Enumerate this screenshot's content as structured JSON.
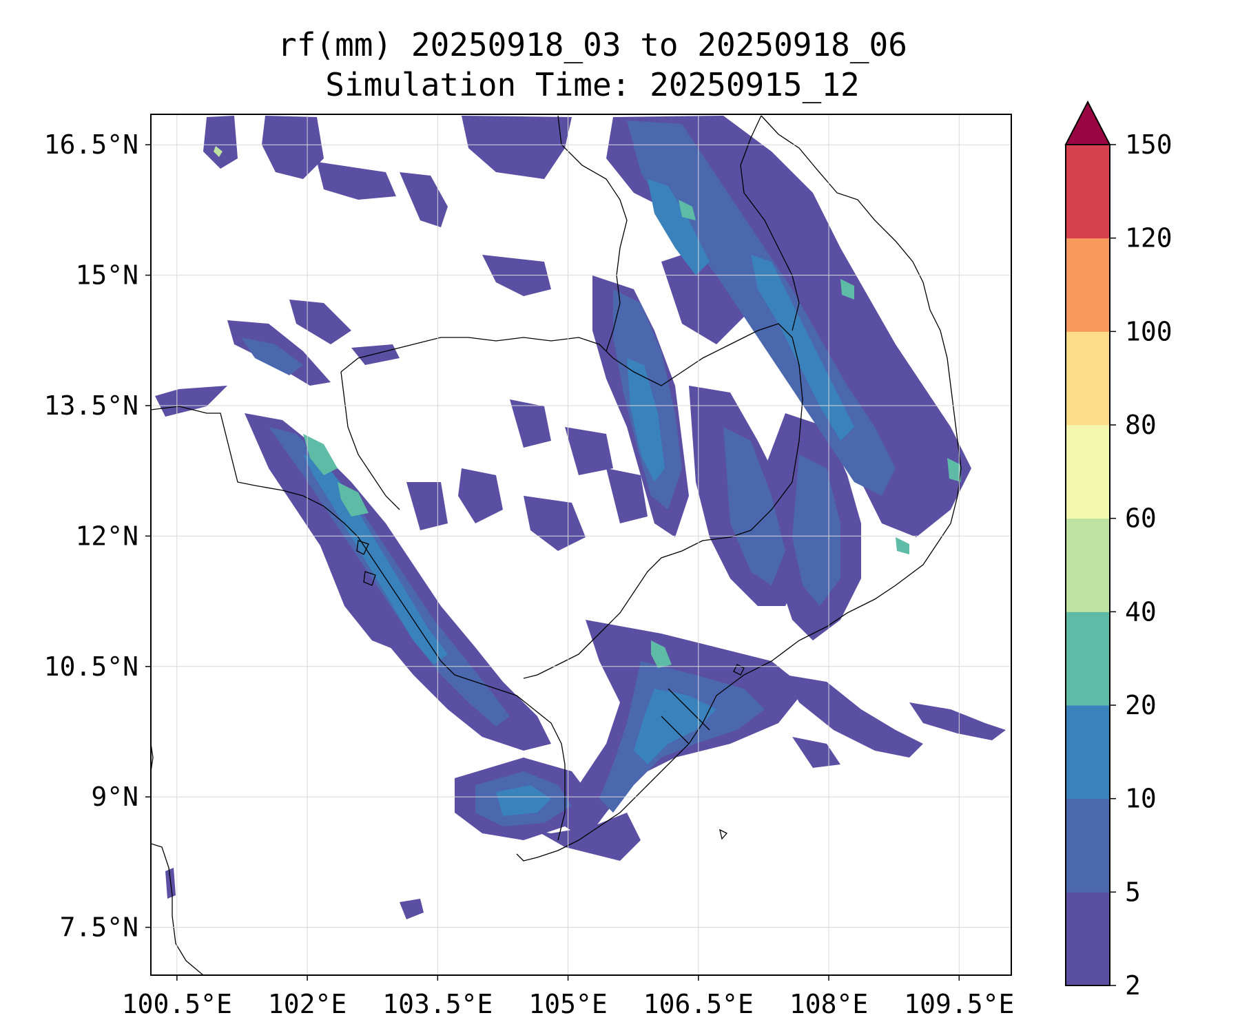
{
  "title": {
    "line1": "rf(mm) 20250918_03 to 20250918_06",
    "line2": "Simulation Time: 20250915_12"
  },
  "map": {
    "lon_range": [
      100.2,
      110.1
    ],
    "lat_range": [
      6.95,
      16.85
    ],
    "x_ticks": [
      {
        "value": 100.5,
        "label": "100.5°E"
      },
      {
        "value": 102.0,
        "label": "102°E"
      },
      {
        "value": 103.5,
        "label": "103.5°E"
      },
      {
        "value": 105.0,
        "label": "105°E"
      },
      {
        "value": 106.5,
        "label": "106.5°E"
      },
      {
        "value": 108.0,
        "label": "108°E"
      },
      {
        "value": 109.5,
        "label": "109.5°E"
      }
    ],
    "y_ticks": [
      {
        "value": 16.5,
        "label": "16.5°N"
      },
      {
        "value": 15.0,
        "label": "15°N"
      },
      {
        "value": 13.5,
        "label": "13.5°N"
      },
      {
        "value": 12.0,
        "label": "12°N"
      },
      {
        "value": 10.5,
        "label": "10.5°N"
      },
      {
        "value": 9.0,
        "label": "9°N"
      },
      {
        "value": 7.5,
        "label": "7.5°N"
      }
    ],
    "gridlines": true
  },
  "colorbar": {
    "levels": [
      2,
      5,
      10,
      20,
      40,
      60,
      80,
      100,
      120,
      150
    ],
    "labels": [
      "2",
      "5",
      "10",
      "20",
      "40",
      "60",
      "80",
      "100",
      "120",
      "150"
    ],
    "colors": [
      "#5a4fa2",
      "#4b67ae",
      "#3a82bb",
      "#5dbba6",
      "#bde2a1",
      "#f2f8ad",
      "#fddc8a",
      "#f99b5e",
      "#d7404e"
    ],
    "extend_color": "#9a0641",
    "extend": "max"
  },
  "rain_colors": {
    "light": "#5a4fa2",
    "moderate": "#4b67ae",
    "heavy": "#3a82bb",
    "very_heavy": "#5dbba6",
    "peak": "#bde2a1",
    "extreme": "#f2f8ad"
  }
}
